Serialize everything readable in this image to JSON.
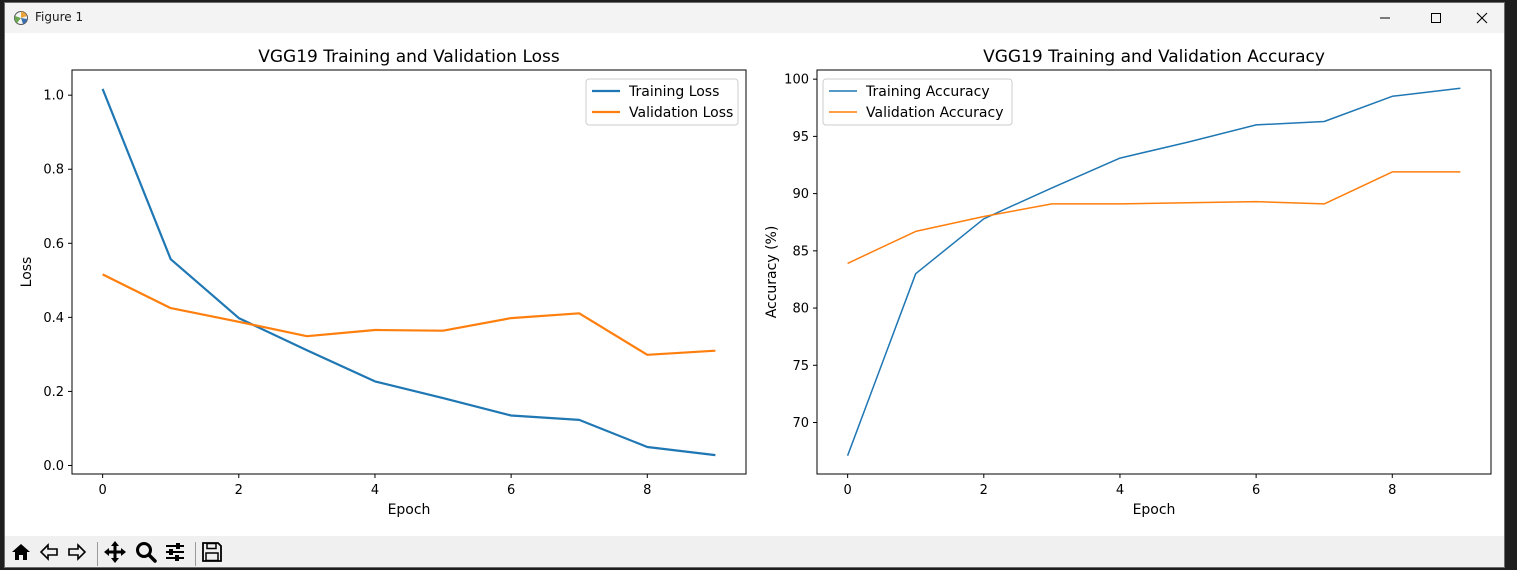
{
  "window": {
    "title": "Figure 1"
  },
  "icons": {
    "app": "matplotlib-icon",
    "minimize": "minimize-icon",
    "maximize": "maximize-icon",
    "close": "close-icon"
  },
  "toolbar": {
    "items": [
      "home-icon",
      "back-arrow-icon",
      "forward-arrow-icon",
      "pan-icon",
      "zoom-icon",
      "configure-subplots-icon",
      "save-icon"
    ]
  },
  "colors": {
    "series1": "#1f77b4",
    "series2": "#ff7f0e"
  },
  "chart_data": [
    {
      "type": "line",
      "title": "VGG19 Training and Validation Loss",
      "xlabel": "Epoch",
      "ylabel": "Loss",
      "xlim": [
        -0.45,
        9.45
      ],
      "ylim": [
        -0.023,
        1.068
      ],
      "xticks": [
        0,
        2,
        4,
        6,
        8
      ],
      "yticks": [
        0.0,
        0.2,
        0.4,
        0.6,
        0.8,
        1.0
      ],
      "ytick_labels": [
        "0.0",
        "0.2",
        "0.4",
        "0.6",
        "0.8",
        "1.0"
      ],
      "legend": "upper right",
      "grid": false,
      "x": [
        0,
        1,
        2,
        3,
        4,
        5,
        6,
        7,
        8,
        9
      ],
      "series": [
        {
          "name": "Training Loss",
          "values": [
            1.017,
            0.557,
            0.398,
            0.311,
            0.227,
            0.182,
            0.135,
            0.123,
            0.05,
            0.028
          ]
        },
        {
          "name": "Validation Loss",
          "values": [
            0.516,
            0.425,
            0.388,
            0.349,
            0.366,
            0.364,
            0.398,
            0.411,
            0.299,
            0.31
          ]
        }
      ]
    },
    {
      "type": "line",
      "title": "VGG19 Training and Validation Accuracy",
      "xlabel": "Epoch",
      "ylabel": "Accuracy (%)",
      "xlim": [
        -0.45,
        9.45
      ],
      "ylim": [
        65.5,
        100.8
      ],
      "xticks": [
        0,
        2,
        4,
        6,
        8
      ],
      "yticks": [
        70,
        75,
        80,
        85,
        90,
        95,
        100
      ],
      "ytick_labels": [
        "70",
        "75",
        "80",
        "85",
        "90",
        "95",
        "100"
      ],
      "legend": "upper left",
      "grid": false,
      "x": [
        0,
        1,
        2,
        3,
        4,
        5,
        6,
        7,
        8,
        9
      ],
      "series": [
        {
          "name": "Training Accuracy",
          "values": [
            67.1,
            83.0,
            87.8,
            90.5,
            93.1,
            94.5,
            96.0,
            96.3,
            98.5,
            99.2
          ]
        },
        {
          "name": "Validation Accuracy",
          "values": [
            83.9,
            86.7,
            88.0,
            89.1,
            89.1,
            89.2,
            89.3,
            89.1,
            91.9,
            91.9
          ]
        }
      ]
    }
  ]
}
